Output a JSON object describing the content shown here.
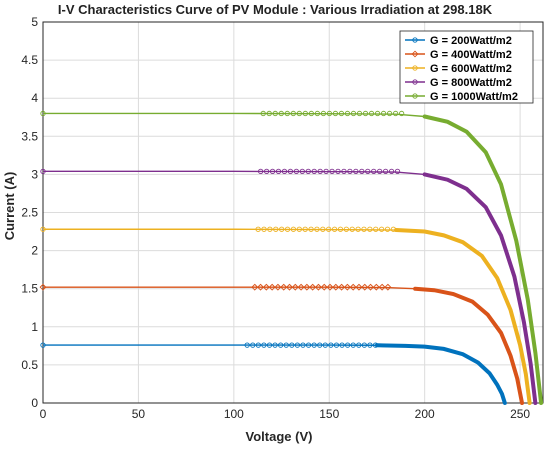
{
  "chart_data": {
    "type": "line",
    "title": "I-V Characteristics Curve of PV Module : Various Irradiation at 298.18K",
    "xlabel": "Voltage (V)",
    "ylabel": "Current (A)",
    "xlim": [
      0,
      262
    ],
    "ylim": [
      0,
      5
    ],
    "x_ticks": [
      0,
      50,
      100,
      150,
      200,
      250
    ],
    "y_ticks": [
      0,
      0.5,
      1,
      1.5,
      2,
      2.5,
      3,
      3.5,
      4,
      4.5,
      5
    ],
    "grid": true,
    "legend_position": "top-right",
    "series": [
      {
        "name": "G = 200Watt/m2",
        "color": "#0072BD",
        "marker": "circle",
        "isc": 0.76,
        "voc": 242,
        "x": [
          0,
          100,
          150,
          175,
          190,
          200,
          210,
          220,
          228,
          234,
          238,
          240.5,
          242
        ],
        "y": [
          0.76,
          0.76,
          0.76,
          0.758,
          0.75,
          0.74,
          0.71,
          0.64,
          0.53,
          0.39,
          0.24,
          0.12,
          0
        ]
      },
      {
        "name": "G = 400Watt/m2",
        "color": "#D95319",
        "marker": "diamond",
        "isc": 1.52,
        "voc": 251,
        "x": [
          0,
          100,
          150,
          180,
          195,
          205,
          215,
          225,
          233,
          240,
          245,
          248.5,
          251
        ],
        "y": [
          1.52,
          1.52,
          1.52,
          1.515,
          1.5,
          1.48,
          1.43,
          1.33,
          1.16,
          0.92,
          0.62,
          0.32,
          0
        ]
      },
      {
        "name": "G = 600Watt/m2",
        "color": "#EDB120",
        "marker": "circle",
        "isc": 2.28,
        "voc": 255,
        "x": [
          0,
          100,
          160,
          185,
          200,
          210,
          220,
          230,
          238,
          245,
          250,
          253,
          255
        ],
        "y": [
          2.28,
          2.28,
          2.275,
          2.27,
          2.25,
          2.2,
          2.11,
          1.93,
          1.64,
          1.22,
          0.76,
          0.38,
          0
        ]
      },
      {
        "name": "G = 800Watt/m2",
        "color": "#7E2F8E",
        "marker": "circle",
        "isc": 3.04,
        "voc": 258,
        "x": [
          0,
          100,
          160,
          185,
          200,
          212,
          222,
          232,
          240,
          247,
          252,
          255.5,
          258
        ],
        "y": [
          3.04,
          3.04,
          3.035,
          3.03,
          3.0,
          2.93,
          2.81,
          2.57,
          2.2,
          1.66,
          1.06,
          0.52,
          0
        ]
      },
      {
        "name": "G = 1000Watt/m2",
        "color": "#77AC30",
        "marker": "circle",
        "isc": 3.8,
        "voc": 261,
        "x": [
          0,
          100,
          160,
          185,
          200,
          212,
          222,
          232,
          240,
          248,
          254,
          258,
          261
        ],
        "y": [
          3.8,
          3.8,
          3.795,
          3.79,
          3.76,
          3.69,
          3.56,
          3.29,
          2.87,
          2.13,
          1.36,
          0.66,
          0
        ]
      }
    ]
  }
}
